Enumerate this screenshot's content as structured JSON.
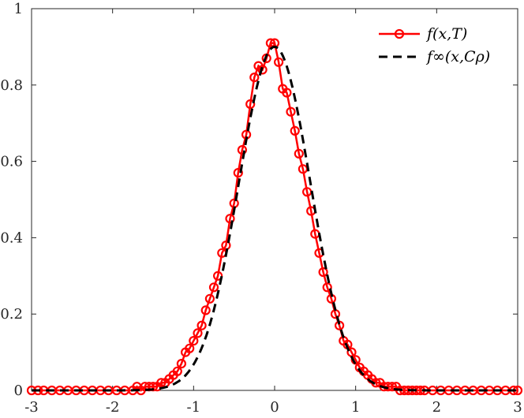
{
  "chart_data": {
    "type": "line",
    "title": "",
    "xlabel": "",
    "ylabel": "",
    "xlim": [
      -3,
      3
    ],
    "ylim": [
      0,
      1
    ],
    "xticks": [
      "-3",
      "-2",
      "-1",
      "0",
      "1",
      "2",
      "3"
    ],
    "yticks": [
      "0",
      "0.2",
      "0.4",
      "0.6",
      "0.8",
      "1"
    ],
    "grid": false,
    "legend_position": "top-right",
    "series": [
      {
        "name": "f(x,T)",
        "color": "#ff0000",
        "style": "solid-circle-markers",
        "x": [
          -3.0,
          -2.92,
          -2.85,
          -2.75,
          -2.65,
          -2.55,
          -2.45,
          -2.35,
          -2.25,
          -2.15,
          -2.05,
          -1.95,
          -1.85,
          -1.75,
          -1.7,
          -1.65,
          -1.6,
          -1.55,
          -1.5,
          -1.45,
          -1.4,
          -1.35,
          -1.3,
          -1.25,
          -1.2,
          -1.15,
          -1.1,
          -1.05,
          -1.0,
          -0.95,
          -0.9,
          -0.85,
          -0.8,
          -0.75,
          -0.7,
          -0.65,
          -0.6,
          -0.55,
          -0.5,
          -0.45,
          -0.4,
          -0.35,
          -0.3,
          -0.25,
          -0.2,
          -0.15,
          -0.1,
          -0.05,
          0.0,
          0.05,
          0.1,
          0.15,
          0.2,
          0.25,
          0.3,
          0.35,
          0.4,
          0.45,
          0.5,
          0.55,
          0.6,
          0.65,
          0.7,
          0.75,
          0.8,
          0.85,
          0.9,
          0.95,
          1.0,
          1.05,
          1.1,
          1.15,
          1.2,
          1.25,
          1.3,
          1.35,
          1.4,
          1.45,
          1.5,
          1.55,
          1.6,
          1.65,
          1.7,
          1.75,
          1.8,
          1.85,
          1.95,
          2.05,
          2.15,
          2.25,
          2.35,
          2.45,
          2.55,
          2.65,
          2.75,
          2.85,
          2.95,
          3.0
        ],
        "y": [
          0.0,
          0.0,
          0.0,
          0.0,
          0.0,
          0.0,
          0.0,
          0.0,
          0.0,
          0.0,
          0.0,
          0.0,
          0.0,
          0.0,
          0.01,
          0.0,
          0.01,
          0.01,
          0.01,
          0.01,
          0.02,
          0.02,
          0.03,
          0.04,
          0.05,
          0.07,
          0.1,
          0.11,
          0.13,
          0.15,
          0.17,
          0.21,
          0.24,
          0.27,
          0.3,
          0.36,
          0.38,
          0.45,
          0.49,
          0.57,
          0.63,
          0.67,
          0.75,
          0.82,
          0.85,
          0.84,
          0.87,
          0.91,
          0.91,
          0.86,
          0.79,
          0.78,
          0.73,
          0.68,
          0.62,
          0.58,
          0.52,
          0.47,
          0.41,
          0.36,
          0.31,
          0.27,
          0.24,
          0.2,
          0.17,
          0.13,
          0.12,
          0.1,
          0.08,
          0.06,
          0.05,
          0.04,
          0.03,
          0.02,
          0.02,
          0.01,
          0.01,
          0.01,
          0.01,
          0.0,
          0.0,
          0.0,
          0.0,
          0.0,
          0.0,
          0.0,
          0.0,
          0.0,
          0.0,
          0.0,
          0.0,
          0.0,
          0.0,
          0.0,
          0.0,
          0.0,
          0.0,
          0.0
        ]
      },
      {
        "name": "f∞(x,Cρ)",
        "color": "#000000",
        "style": "dashed",
        "function": "gaussian",
        "amplitude": 0.9,
        "mean": 0,
        "sigma": 0.44
      }
    ]
  }
}
